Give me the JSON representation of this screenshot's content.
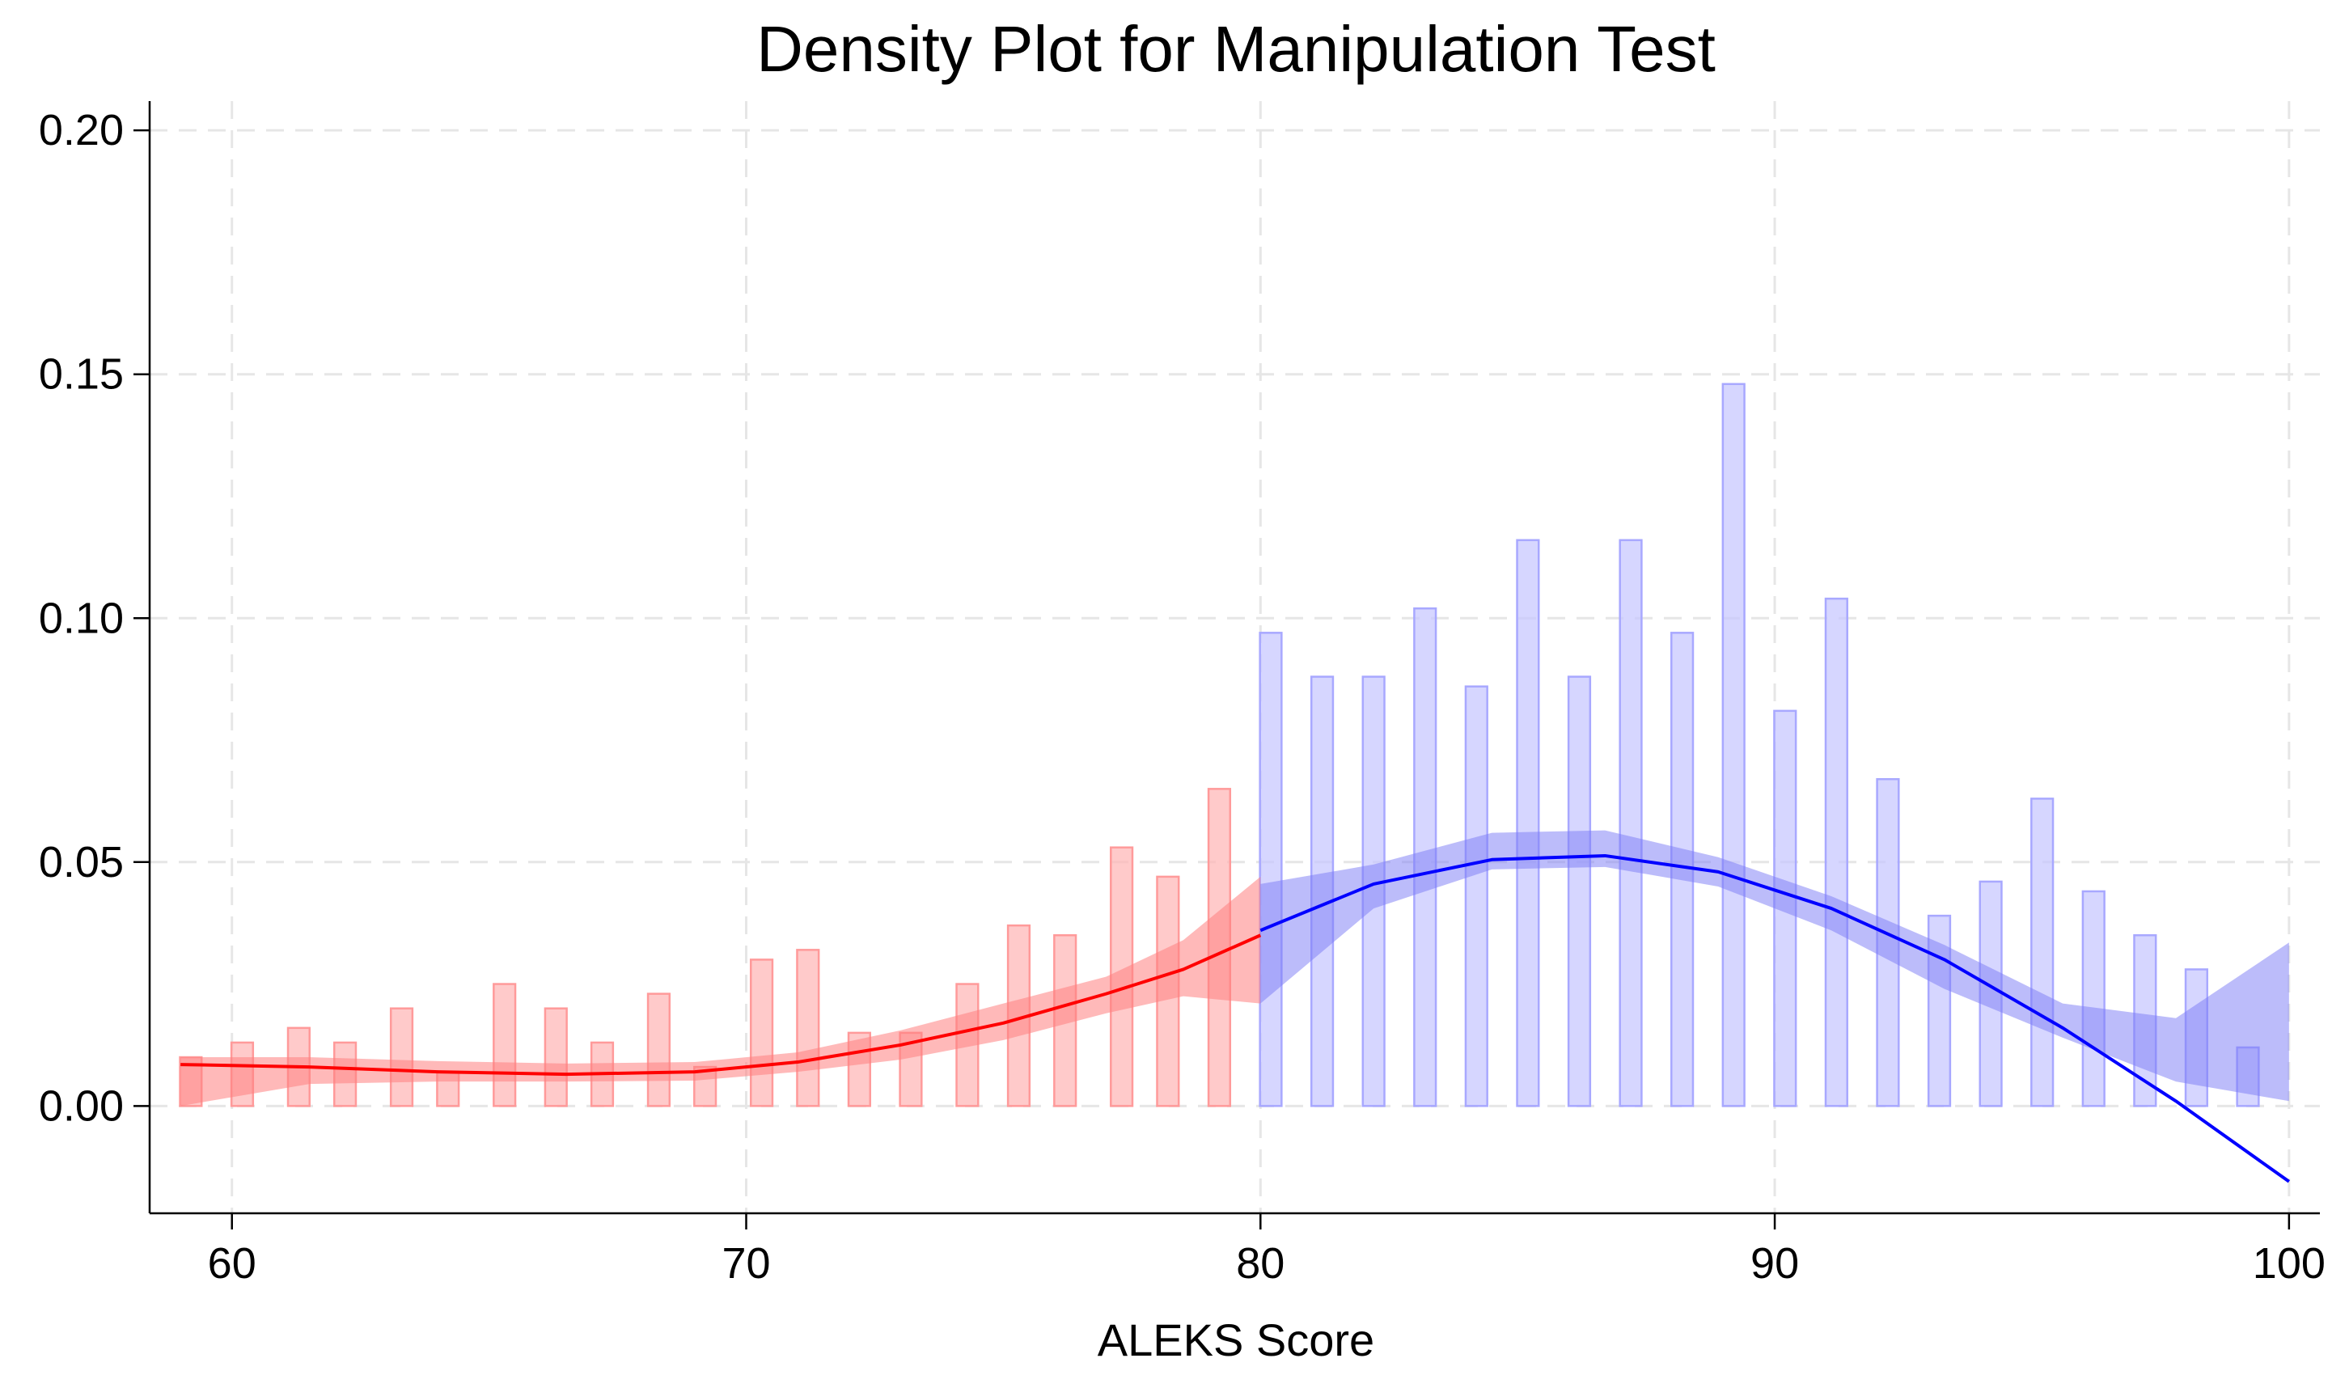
{
  "chart_data": {
    "type": "bar",
    "title": "Density Plot for Manipulation Test",
    "xlabel": "ALEKS Score",
    "ylabel": "",
    "xlim": [
      58.4,
      100.6
    ],
    "ylim": [
      -0.022,
      0.206
    ],
    "x_ticks": [
      60,
      70,
      80,
      90,
      100
    ],
    "y_ticks": [
      0.0,
      0.05,
      0.1,
      0.15,
      0.2
    ],
    "x_tick_labels": [
      "60",
      "70",
      "80",
      "90",
      "100"
    ],
    "y_tick_labels": [
      "0.00",
      "0.05",
      "0.10",
      "0.15",
      "0.20"
    ],
    "grid": true,
    "cutoff": 80,
    "bar_width": 0.42,
    "colors": {
      "left_bar_fill": "#ffb3b3",
      "left_bar_stroke": "#ff9a9a",
      "left_band": "#ff8080",
      "left_line": "#ff0000",
      "right_bar_fill": "#c4c4ff",
      "right_bar_stroke": "#a8a8ff",
      "right_band": "#7a7af5",
      "right_line": "#0000ff",
      "grid": "#e6e6e6",
      "axis": "#000000"
    },
    "series": [
      {
        "values_x": [
          59.2,
          60.2,
          61.3,
          62.2,
          63.3,
          64.2,
          65.3,
          66.3,
          67.2,
          68.3,
          69.2,
          70.3,
          71.2,
          72.2,
          73.2,
          74.3,
          75.3,
          76.2,
          77.3,
          78.2,
          79.2
        ],
        "values_y": [
          0.01,
          0.013,
          0.016,
          0.013,
          0.02,
          0.007,
          0.025,
          0.02,
          0.013,
          0.023,
          0.008,
          0.03,
          0.032,
          0.015,
          0.015,
          0.025,
          0.037,
          0.035,
          0.053,
          0.047,
          0.065
        ],
        "fit_x": [
          59,
          61.5,
          64,
          66.5,
          69,
          71,
          73,
          75,
          77,
          78.5,
          80
        ],
        "fit_y": [
          0.0085,
          0.008,
          0.007,
          0.0065,
          0.007,
          0.009,
          0.0125,
          0.017,
          0.023,
          0.028,
          0.035
        ],
        "ci_low": [
          0.0,
          0.0045,
          0.005,
          0.005,
          0.0052,
          0.007,
          0.0095,
          0.0135,
          0.019,
          0.0225,
          0.021
        ],
        "ci_high": [
          0.01,
          0.01,
          0.0092,
          0.0087,
          0.009,
          0.011,
          0.0155,
          0.021,
          0.0265,
          0.034,
          0.047
        ]
      },
      {
        "values_x": [
          80.2,
          81.2,
          82.2,
          83.2,
          84.2,
          85.2,
          86.2,
          87.2,
          88.2,
          89.2,
          90.2,
          91.2,
          92.2,
          93.2,
          94.2,
          95.2,
          96.2,
          97.2,
          98.2,
          99.2
        ],
        "values_y": [
          0.097,
          0.088,
          0.088,
          0.102,
          0.086,
          0.116,
          0.088,
          0.116,
          0.097,
          0.148,
          0.081,
          0.104,
          0.067,
          0.039,
          0.046,
          0.063,
          0.044,
          0.035,
          0.028,
          0.012
        ],
        "fit_x": [
          80,
          82.2,
          84.5,
          86.7,
          88.9,
          91.1,
          93.3,
          95.6,
          97.8,
          100
        ],
        "fit_y": [
          0.036,
          0.0455,
          0.0505,
          0.0513,
          0.048,
          0.0405,
          0.03,
          0.016,
          0.001,
          -0.0155
        ],
        "ci_low": [
          0.021,
          0.0405,
          0.0485,
          0.049,
          0.045,
          0.036,
          0.024,
          0.014,
          0.005,
          0.001
        ],
        "ci_high": [
          0.0455,
          0.0495,
          0.056,
          0.0565,
          0.051,
          0.043,
          0.033,
          0.021,
          0.018,
          0.0335
        ]
      }
    ]
  }
}
